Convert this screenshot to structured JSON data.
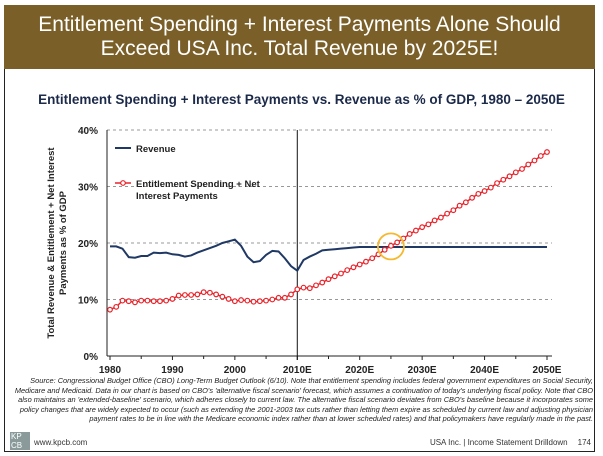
{
  "header": {
    "title_line1": "Entitlement Spending + Interest Payments Alone Should",
    "title_line2": "Exceed USA Inc. Total Revenue by 2025E!"
  },
  "colors": {
    "header": "#7a5f29",
    "revenue": "#1f3864",
    "entitlement": "#e8232a",
    "highlight": "#f5b82e"
  },
  "chart_data": {
    "type": "line",
    "title": "Entitlement Spending + Interest Payments vs. Revenue as % of GDP, 1980 – 2050E",
    "ylabel": "Total Revenue & Entitlement + Net Interest Payments as % of GDP",
    "xlabel": "",
    "ylim": [
      0,
      40
    ],
    "xlim": [
      1980,
      2050
    ],
    "yticks": [
      "0%",
      "10%",
      "20%",
      "30%",
      "40%"
    ],
    "xticks": [
      "1980",
      "1990",
      "2000",
      "2010E",
      "2020E",
      "2030E",
      "2040E",
      "2050E"
    ],
    "grid": "horizontal dashed",
    "legend": "top-left",
    "vertical_marker": 2010,
    "highlight_circle": {
      "x": 2025,
      "y": 19.4
    },
    "x_start": 1980,
    "series": [
      {
        "name": "Revenue",
        "values": [
          19.4,
          19.4,
          19.0,
          17.5,
          17.4,
          17.7,
          17.7,
          18.3,
          18.2,
          18.3,
          18.0,
          17.9,
          17.6,
          17.8,
          18.3,
          18.7,
          19.1,
          19.5,
          20.0,
          20.3,
          20.6,
          19.5,
          17.6,
          16.6,
          16.8,
          17.9,
          18.6,
          18.5,
          17.3,
          15.9,
          15.1,
          17.0,
          17.6,
          18.1,
          18.7,
          18.8,
          18.9,
          19.0,
          19.1,
          19.2,
          19.3,
          19.3,
          19.3,
          19.3,
          19.3,
          19.3,
          19.3,
          19.3,
          19.3,
          19.3,
          19.3,
          19.3,
          19.3,
          19.3,
          19.3,
          19.3,
          19.3,
          19.3,
          19.3,
          19.3,
          19.3,
          19.3,
          19.3,
          19.3,
          19.3,
          19.3,
          19.3,
          19.3,
          19.3,
          19.3,
          19.3
        ]
      },
      {
        "name": "Entitlement Spending + Net Interest Payments",
        "values": [
          8.2,
          8.7,
          9.8,
          9.7,
          9.5,
          9.8,
          9.8,
          9.7,
          9.7,
          9.8,
          10.1,
          10.7,
          10.8,
          10.8,
          10.9,
          11.3,
          11.2,
          10.9,
          10.5,
          10.1,
          9.7,
          9.9,
          9.8,
          9.6,
          9.7,
          9.8,
          10.0,
          10.3,
          10.3,
          10.9,
          11.8,
          12.1,
          12.0,
          12.5,
          13.0,
          13.6,
          14.1,
          14.6,
          15.2,
          15.7,
          16.2,
          16.7,
          17.3,
          18.0,
          18.8,
          19.5,
          20.1,
          20.8,
          21.6,
          22.2,
          22.8,
          23.3,
          24.0,
          24.5,
          25.2,
          25.8,
          26.6,
          27.2,
          28.0,
          28.7,
          29.2,
          29.8,
          30.6,
          31.2,
          31.8,
          32.5,
          33.1,
          33.9,
          34.6,
          35.4,
          36.1
        ]
      }
    ]
  },
  "source_note": "Source: Congressional Budget Office (CBO) Long-Term Budget Outlook (6/10). Note that entitlement spending includes federal government expenditures on Social Security, Medicare and Medicaid. Data in our chart is based on CBO's 'alternative fiscal scenario' forecast, which assumes a continuation of today's underlying fiscal policy. Note that CBO also maintains an 'extended-baseline' scenario, which adheres closely to current law.  The alternative fiscal scenario deviates from CBO's baseline because it incorporates some policy changes that are widely expected to occur (such as extending the 2001-2003 tax cuts rather than letting them expire as scheduled by current law and adjusting physician payment rates to be in line with the Medicare economic index rather than at lower scheduled rates) and that policymakers have regularly made in the past.",
  "footer": {
    "logo_top": "KP",
    "logo_bottom": "CB",
    "url": "www.kpcb.com",
    "section": "USA Inc. | Income Statement Drilldown",
    "page": "174"
  }
}
